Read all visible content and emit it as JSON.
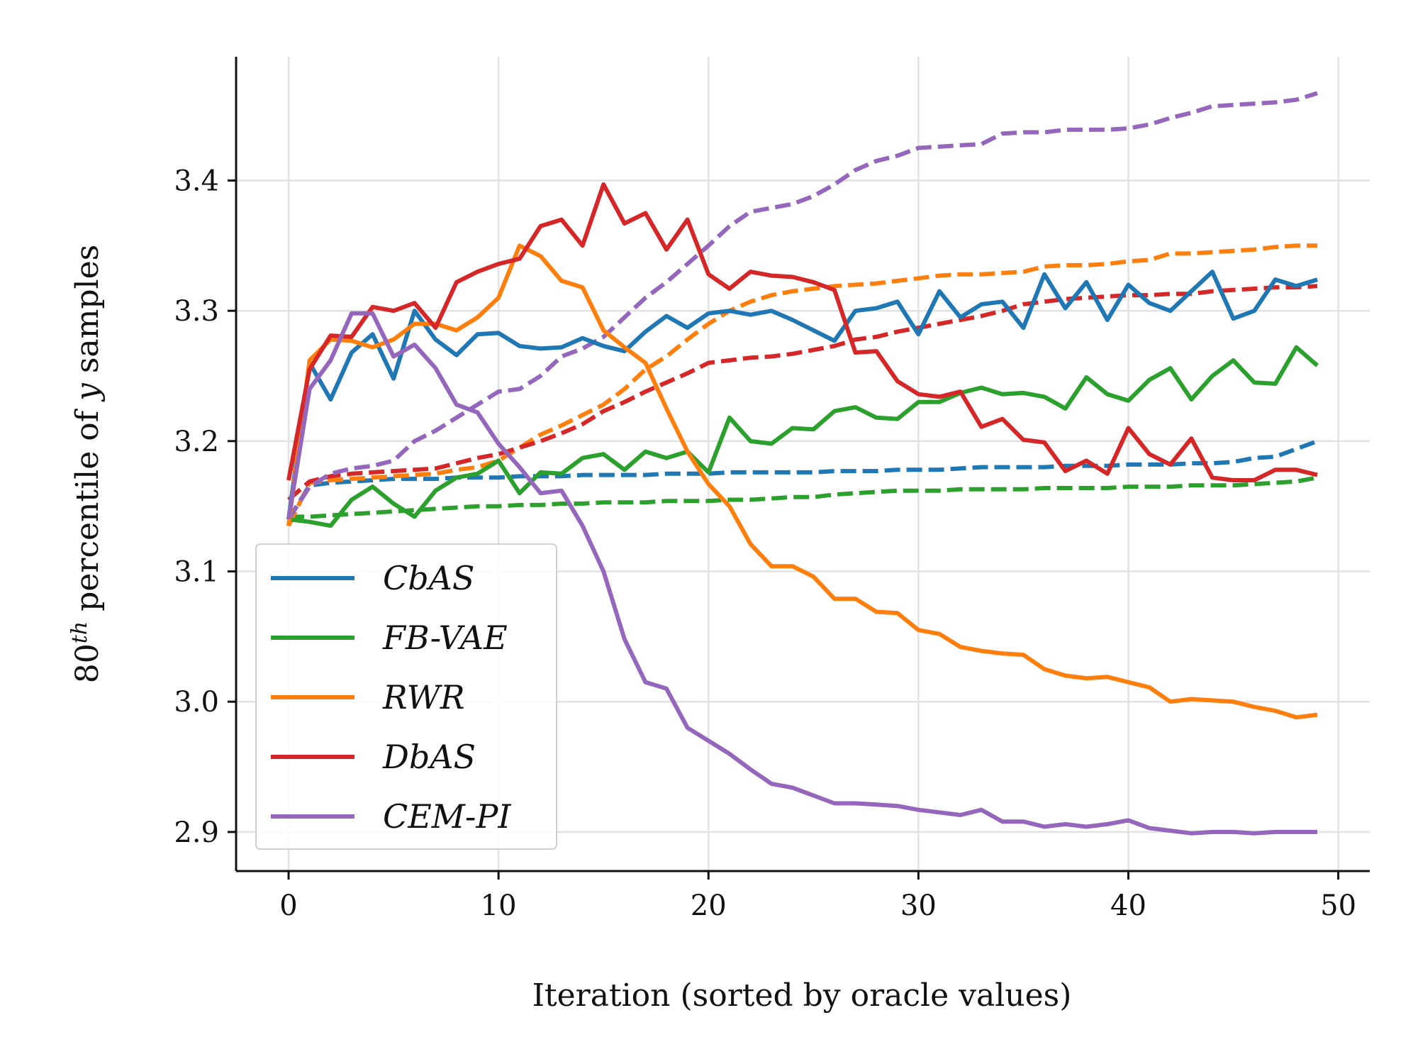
{
  "chart_data": {
    "type": "line",
    "title": "",
    "xlabel": "Iteration (sorted by oracle values)",
    "ylabel_main": "80",
    "ylabel_sup": "th",
    "ylabel_rest": " percentile of ",
    "ylabel_var": "y",
    "ylabel_end": " samples",
    "xlim": [
      -2.5,
      51.5
    ],
    "ylim": [
      2.87,
      3.495
    ],
    "xticks": [
      0,
      10,
      20,
      30,
      40,
      50
    ],
    "yticks": [
      2.9,
      3.0,
      3.1,
      3.2,
      3.3,
      3.4
    ],
    "grid": true,
    "legend_position": "lower-left",
    "legend_style": "solid",
    "note": "solid = mean, dashed = max",
    "series": [
      {
        "name": "CbAS",
        "color": "#1f77b4",
        "solid": [
          3.14,
          3.26,
          3.232,
          3.268,
          3.282,
          3.248,
          3.3,
          3.278,
          3.266,
          3.282,
          3.283,
          3.273,
          3.271,
          3.272,
          3.279,
          3.273,
          3.269,
          3.284,
          3.296,
          3.287,
          3.298,
          3.3,
          3.297,
          3.3,
          3.293,
          3.285,
          3.277,
          3.3,
          3.302,
          3.307,
          3.282,
          3.315,
          3.295,
          3.305,
          3.307,
          3.287,
          3.328,
          3.302,
          3.322,
          3.293,
          3.32,
          3.306,
          3.3,
          3.315,
          3.33,
          3.294,
          3.3,
          3.324,
          3.319,
          3.324
        ],
        "dashed": [
          3.14,
          3.166,
          3.168,
          3.169,
          3.17,
          3.171,
          3.171,
          3.171,
          3.172,
          3.172,
          3.172,
          3.173,
          3.173,
          3.173,
          3.174,
          3.174,
          3.174,
          3.174,
          3.175,
          3.175,
          3.175,
          3.176,
          3.176,
          3.176,
          3.176,
          3.176,
          3.177,
          3.177,
          3.177,
          3.178,
          3.178,
          3.178,
          3.179,
          3.18,
          3.18,
          3.18,
          3.18,
          3.181,
          3.181,
          3.181,
          3.182,
          3.182,
          3.182,
          3.183,
          3.183,
          3.184,
          3.187,
          3.188,
          3.194,
          3.2
        ]
      },
      {
        "name": "FB-VAE",
        "color": "#2ca02c",
        "solid": [
          3.14,
          3.138,
          3.135,
          3.155,
          3.165,
          3.152,
          3.142,
          3.162,
          3.172,
          3.175,
          3.185,
          3.16,
          3.176,
          3.175,
          3.187,
          3.19,
          3.178,
          3.192,
          3.187,
          3.192,
          3.176,
          3.218,
          3.2,
          3.198,
          3.21,
          3.209,
          3.223,
          3.226,
          3.218,
          3.217,
          3.23,
          3.23,
          3.237,
          3.241,
          3.236,
          3.237,
          3.234,
          3.225,
          3.249,
          3.236,
          3.231,
          3.247,
          3.256,
          3.232,
          3.25,
          3.262,
          3.245,
          3.244,
          3.272,
          3.258
        ],
        "dashed": [
          3.142,
          3.142,
          3.143,
          3.144,
          3.145,
          3.146,
          3.147,
          3.148,
          3.149,
          3.15,
          3.15,
          3.151,
          3.151,
          3.152,
          3.152,
          3.153,
          3.153,
          3.153,
          3.154,
          3.154,
          3.154,
          3.155,
          3.155,
          3.156,
          3.157,
          3.157,
          3.159,
          3.16,
          3.161,
          3.162,
          3.162,
          3.162,
          3.163,
          3.163,
          3.163,
          3.163,
          3.164,
          3.164,
          3.164,
          3.164,
          3.165,
          3.165,
          3.165,
          3.166,
          3.166,
          3.166,
          3.167,
          3.168,
          3.169,
          3.172
        ]
      },
      {
        "name": "RWR",
        "color": "#ff7f0e",
        "solid": [
          3.135,
          3.262,
          3.278,
          3.277,
          3.272,
          3.278,
          3.29,
          3.29,
          3.285,
          3.295,
          3.31,
          3.35,
          3.342,
          3.323,
          3.318,
          3.285,
          3.272,
          3.26,
          3.225,
          3.192,
          3.167,
          3.15,
          3.121,
          3.104,
          3.104,
          3.096,
          3.079,
          3.079,
          3.069,
          3.068,
          3.055,
          3.052,
          3.042,
          3.039,
          3.037,
          3.036,
          3.025,
          3.02,
          3.018,
          3.019,
          3.015,
          3.011,
          3.0,
          3.002,
          3.001,
          3.0,
          2.996,
          2.993,
          2.988,
          2.99
        ],
        "dashed": [
          3.135,
          3.168,
          3.17,
          3.171,
          3.172,
          3.173,
          3.174,
          3.175,
          3.178,
          3.18,
          3.185,
          3.195,
          3.205,
          3.212,
          3.22,
          3.228,
          3.24,
          3.255,
          3.265,
          3.278,
          3.29,
          3.3,
          3.307,
          3.312,
          3.315,
          3.317,
          3.319,
          3.32,
          3.321,
          3.323,
          3.325,
          3.327,
          3.328,
          3.328,
          3.329,
          3.33,
          3.334,
          3.335,
          3.335,
          3.336,
          3.338,
          3.339,
          3.344,
          3.344,
          3.345,
          3.346,
          3.347,
          3.349,
          3.35,
          3.35
        ]
      },
      {
        "name": "DbAS",
        "color": "#d62728",
        "solid": [
          3.17,
          3.255,
          3.281,
          3.28,
          3.303,
          3.3,
          3.306,
          3.287,
          3.322,
          3.33,
          3.336,
          3.34,
          3.365,
          3.37,
          3.35,
          3.397,
          3.367,
          3.375,
          3.347,
          3.37,
          3.328,
          3.317,
          3.33,
          3.327,
          3.326,
          3.322,
          3.316,
          3.268,
          3.269,
          3.246,
          3.236,
          3.234,
          3.238,
          3.211,
          3.217,
          3.201,
          3.199,
          3.177,
          3.185,
          3.175,
          3.21,
          3.19,
          3.182,
          3.202,
          3.172,
          3.17,
          3.17,
          3.178,
          3.178,
          3.174
        ],
        "dashed": [
          3.155,
          3.169,
          3.173,
          3.175,
          3.176,
          3.177,
          3.178,
          3.179,
          3.183,
          3.187,
          3.19,
          3.195,
          3.2,
          3.206,
          3.213,
          3.223,
          3.23,
          3.238,
          3.245,
          3.252,
          3.26,
          3.262,
          3.264,
          3.265,
          3.267,
          3.27,
          3.273,
          3.278,
          3.28,
          3.284,
          3.287,
          3.29,
          3.293,
          3.296,
          3.3,
          3.305,
          3.307,
          3.309,
          3.31,
          3.311,
          3.312,
          3.312,
          3.313,
          3.313,
          3.315,
          3.316,
          3.317,
          3.318,
          3.318,
          3.319
        ]
      },
      {
        "name": "CEM-PI",
        "color": "#9467bd",
        "solid": [
          3.14,
          3.24,
          3.262,
          3.298,
          3.298,
          3.265,
          3.274,
          3.256,
          3.228,
          3.222,
          3.198,
          3.18,
          3.16,
          3.162,
          3.135,
          3.1,
          3.048,
          3.015,
          3.01,
          2.98,
          2.97,
          2.96,
          2.948,
          2.937,
          2.934,
          2.928,
          2.922,
          2.922,
          2.921,
          2.92,
          2.917,
          2.915,
          2.913,
          2.917,
          2.908,
          2.908,
          2.904,
          2.906,
          2.904,
          2.906,
          2.909,
          2.903,
          2.901,
          2.899,
          2.9,
          2.9,
          2.899,
          2.9,
          2.9,
          2.9
        ],
        "dashed": [
          3.14,
          3.165,
          3.175,
          3.179,
          3.181,
          3.185,
          3.2,
          3.208,
          3.218,
          3.228,
          3.238,
          3.24,
          3.25,
          3.265,
          3.271,
          3.28,
          3.295,
          3.31,
          3.322,
          3.336,
          3.35,
          3.365,
          3.376,
          3.379,
          3.382,
          3.388,
          3.397,
          3.408,
          3.415,
          3.419,
          3.425,
          3.426,
          3.427,
          3.428,
          3.436,
          3.437,
          3.437,
          3.439,
          3.439,
          3.439,
          3.44,
          3.443,
          3.448,
          3.452,
          3.457,
          3.458,
          3.459,
          3.46,
          3.462,
          3.467
        ]
      }
    ]
  }
}
